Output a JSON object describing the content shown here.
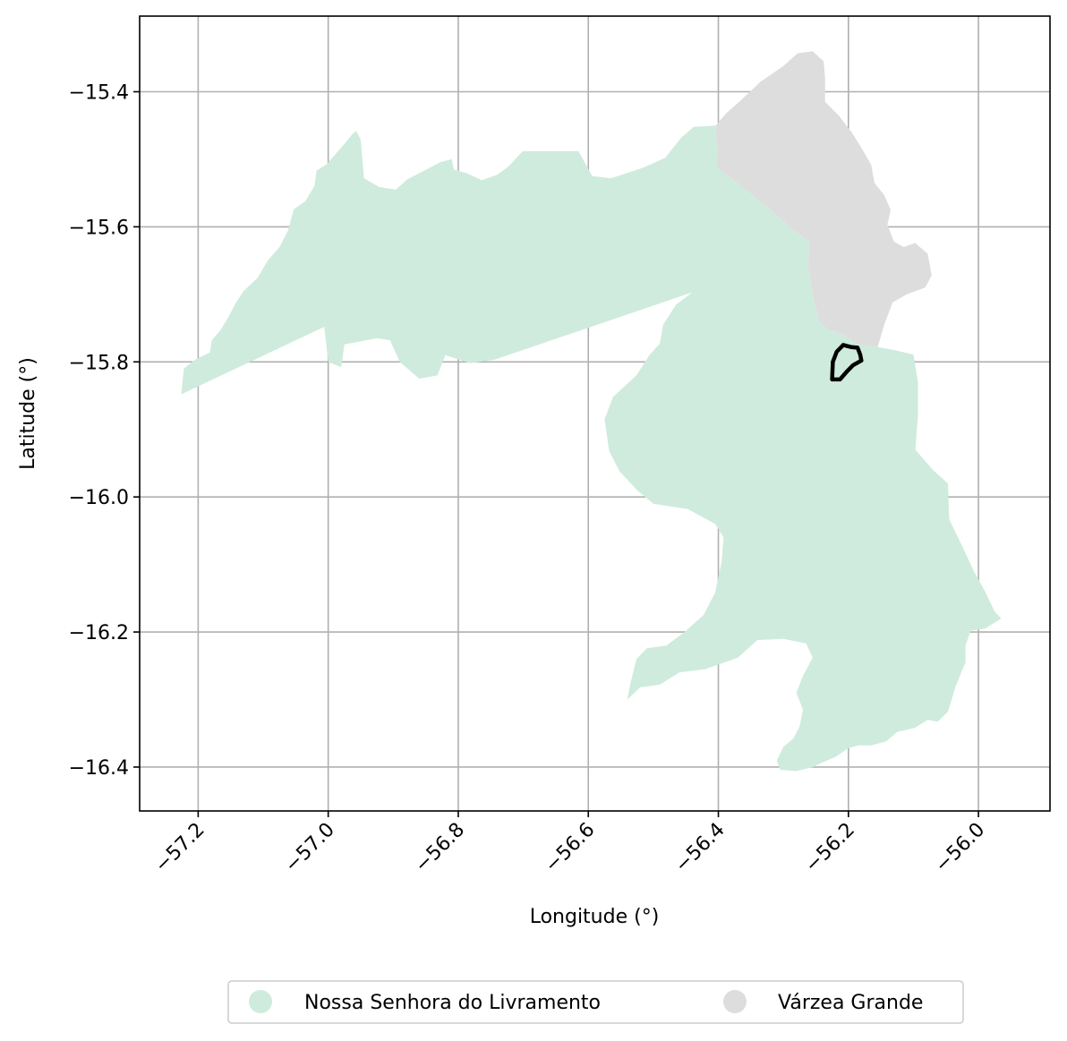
{
  "chart_data": {
    "type": "map",
    "xlabel": "Longitude (°)",
    "ylabel": "Latitude (°)",
    "xlim": [
      -57.29,
      -55.89
    ],
    "ylim": [
      -16.465,
      -15.288
    ],
    "xticks": [
      -57.2,
      -57.0,
      -56.8,
      -56.6,
      -56.4,
      -56.2,
      -56.0
    ],
    "yticks": [
      -15.4,
      -15.6,
      -15.8,
      -16.0,
      -16.2,
      -16.4
    ],
    "xtick_labels": [
      "−57.2",
      "−57.0",
      "−56.8",
      "−56.6",
      "−56.4",
      "−56.2",
      "−56.0"
    ],
    "ytick_labels": [
      "−15.4",
      "−15.6",
      "−15.8",
      "−16.0",
      "−16.2",
      "−16.4"
    ],
    "grid": true,
    "legend_position": "bottom-center",
    "regions": [
      {
        "name": "Nossa Senhora do Livramento",
        "color": "#cfebdd",
        "polygon": [
          [
            -57.226,
            -15.848
          ],
          [
            -57.222,
            -15.81
          ],
          [
            -57.205,
            -15.797
          ],
          [
            -57.182,
            -15.786
          ],
          [
            -57.179,
            -15.768
          ],
          [
            -57.165,
            -15.752
          ],
          [
            -57.153,
            -15.733
          ],
          [
            -57.143,
            -15.714
          ],
          [
            -57.13,
            -15.695
          ],
          [
            -57.109,
            -15.676
          ],
          [
            -57.093,
            -15.65
          ],
          [
            -57.075,
            -15.63
          ],
          [
            -57.062,
            -15.606
          ],
          [
            -57.053,
            -15.574
          ],
          [
            -57.035,
            -15.562
          ],
          [
            -57.021,
            -15.539
          ],
          [
            -57.018,
            -15.517
          ],
          [
            -57.002,
            -15.507
          ],
          [
            -56.983,
            -15.486
          ],
          [
            -56.974,
            -15.476
          ],
          [
            -56.963,
            -15.463
          ],
          [
            -56.957,
            -15.458
          ],
          [
            -56.95,
            -15.471
          ],
          [
            -56.945,
            -15.528
          ],
          [
            -56.922,
            -15.541
          ],
          [
            -56.896,
            -15.545
          ],
          [
            -56.879,
            -15.53
          ],
          [
            -56.827,
            -15.504
          ],
          [
            -56.81,
            -15.5
          ],
          [
            -56.807,
            -15.515
          ],
          [
            -56.786,
            -15.521
          ],
          [
            -56.764,
            -15.531
          ],
          [
            -56.74,
            -15.523
          ],
          [
            -56.722,
            -15.51
          ],
          [
            -56.701,
            -15.488
          ],
          [
            -56.615,
            -15.488
          ],
          [
            -56.594,
            -15.525
          ],
          [
            -56.565,
            -15.528
          ],
          [
            -56.517,
            -15.513
          ],
          [
            -56.482,
            -15.498
          ],
          [
            -56.457,
            -15.468
          ],
          [
            -56.438,
            -15.452
          ],
          [
            -56.404,
            -15.45
          ],
          [
            -56.4,
            -15.514
          ],
          [
            -56.372,
            -15.534
          ],
          [
            -56.322,
            -15.573
          ],
          [
            -56.286,
            -15.604
          ],
          [
            -56.26,
            -15.622
          ],
          [
            -56.262,
            -15.66
          ],
          [
            -56.255,
            -15.7
          ],
          [
            -56.245,
            -15.74
          ],
          [
            -56.232,
            -15.752
          ],
          [
            -56.21,
            -15.758
          ],
          [
            -56.185,
            -15.774
          ],
          [
            -56.155,
            -15.778
          ],
          [
            -56.132,
            -15.782
          ],
          [
            -56.1,
            -15.789
          ],
          [
            -56.093,
            -15.83
          ],
          [
            -56.093,
            -15.88
          ],
          [
            -56.097,
            -15.93
          ],
          [
            -56.07,
            -15.96
          ],
          [
            -56.047,
            -15.98
          ],
          [
            -56.045,
            -16.033
          ],
          [
            -56.024,
            -16.075
          ],
          [
            -56.007,
            -16.11
          ],
          [
            -55.99,
            -16.14
          ],
          [
            -55.975,
            -16.17
          ],
          [
            -55.965,
            -16.18
          ],
          [
            -55.99,
            -16.195
          ],
          [
            -56.012,
            -16.198
          ],
          [
            -56.02,
            -16.22
          ],
          [
            -56.02,
            -16.245
          ],
          [
            -56.035,
            -16.28
          ],
          [
            -56.047,
            -16.318
          ],
          [
            -56.063,
            -16.333
          ],
          [
            -56.078,
            -16.33
          ],
          [
            -56.098,
            -16.342
          ],
          [
            -56.125,
            -16.348
          ],
          [
            -56.142,
            -16.362
          ],
          [
            -56.165,
            -16.368
          ],
          [
            -56.185,
            -16.368
          ],
          [
            -56.2,
            -16.372
          ],
          [
            -56.22,
            -16.385
          ],
          [
            -56.237,
            -16.392
          ],
          [
            -56.255,
            -16.4
          ],
          [
            -56.28,
            -16.406
          ],
          [
            -56.305,
            -16.404
          ],
          [
            -56.31,
            -16.39
          ],
          [
            -56.3,
            -16.37
          ],
          [
            -56.285,
            -16.358
          ],
          [
            -56.275,
            -16.34
          ],
          [
            -56.27,
            -16.315
          ],
          [
            -56.28,
            -16.29
          ],
          [
            -56.27,
            -16.265
          ],
          [
            -56.255,
            -16.238
          ],
          [
            -56.265,
            -16.217
          ],
          [
            -56.3,
            -16.21
          ],
          [
            -56.34,
            -16.212
          ],
          [
            -56.37,
            -16.238
          ],
          [
            -56.42,
            -16.255
          ],
          [
            -56.46,
            -16.26
          ],
          [
            -56.49,
            -16.278
          ],
          [
            -56.52,
            -16.282
          ],
          [
            -56.54,
            -16.3
          ],
          [
            -56.535,
            -16.275
          ],
          [
            -56.526,
            -16.24
          ],
          [
            -56.51,
            -16.224
          ],
          [
            -56.48,
            -16.22
          ],
          [
            -56.452,
            -16.2
          ],
          [
            -56.423,
            -16.175
          ],
          [
            -56.405,
            -16.142
          ],
          [
            -56.395,
            -16.096
          ],
          [
            -56.392,
            -16.06
          ],
          [
            -56.405,
            -16.04
          ],
          [
            -56.447,
            -16.018
          ],
          [
            -56.5,
            -16.01
          ],
          [
            -56.525,
            -15.99
          ],
          [
            -56.552,
            -15.962
          ],
          [
            -56.568,
            -15.932
          ],
          [
            -56.575,
            -15.885
          ],
          [
            -56.562,
            -15.852
          ],
          [
            -56.526,
            -15.82
          ],
          [
            -56.506,
            -15.79
          ],
          [
            -56.49,
            -15.773
          ],
          [
            -56.485,
            -15.745
          ],
          [
            -56.465,
            -15.715
          ],
          [
            -56.44,
            -15.697
          ],
          [
            -56.745,
            -15.797
          ],
          [
            -56.782,
            -15.802
          ],
          [
            -56.82,
            -15.79
          ],
          [
            -56.832,
            -15.82
          ],
          [
            -56.86,
            -15.825
          ],
          [
            -56.89,
            -15.8
          ],
          [
            -56.905,
            -15.768
          ],
          [
            -56.925,
            -15.765
          ],
          [
            -56.975,
            -15.774
          ],
          [
            -56.98,
            -15.808
          ],
          [
            -57.0,
            -15.8
          ],
          [
            -57.006,
            -15.748
          ],
          [
            -57.226,
            -15.848
          ]
        ]
      },
      {
        "name": "Várzea Grande",
        "color": "#dddddd",
        "polygon": [
          [
            -56.404,
            -15.45
          ],
          [
            -56.388,
            -15.432
          ],
          [
            -56.368,
            -15.415
          ],
          [
            -56.335,
            -15.385
          ],
          [
            -56.3,
            -15.362
          ],
          [
            -56.278,
            -15.343
          ],
          [
            -56.255,
            -15.34
          ],
          [
            -56.238,
            -15.355
          ],
          [
            -56.236,
            -15.38
          ],
          [
            -56.236,
            -15.415
          ],
          [
            -56.215,
            -15.435
          ],
          [
            -56.195,
            -15.46
          ],
          [
            -56.18,
            -15.483
          ],
          [
            -56.165,
            -15.508
          ],
          [
            -56.16,
            -15.535
          ],
          [
            -56.145,
            -15.553
          ],
          [
            -56.135,
            -15.575
          ],
          [
            -56.14,
            -15.597
          ],
          [
            -56.13,
            -15.622
          ],
          [
            -56.115,
            -15.63
          ],
          [
            -56.097,
            -15.624
          ],
          [
            -56.078,
            -15.64
          ],
          [
            -56.072,
            -15.672
          ],
          [
            -56.082,
            -15.69
          ],
          [
            -56.11,
            -15.7
          ],
          [
            -56.132,
            -15.712
          ],
          [
            -56.145,
            -15.745
          ],
          [
            -56.155,
            -15.778
          ],
          [
            -56.185,
            -15.774
          ],
          [
            -56.21,
            -15.758
          ],
          [
            -56.232,
            -15.752
          ],
          [
            -56.245,
            -15.74
          ],
          [
            -56.255,
            -15.7
          ],
          [
            -56.262,
            -15.66
          ],
          [
            -56.26,
            -15.622
          ],
          [
            -56.286,
            -15.604
          ],
          [
            -56.322,
            -15.573
          ],
          [
            -56.372,
            -15.534
          ],
          [
            -56.4,
            -15.514
          ],
          [
            -56.404,
            -15.45
          ]
        ]
      }
    ],
    "outline": {
      "color": "#000000",
      "polygon": [
        [
          -56.225,
          -15.826
        ],
        [
          -56.224,
          -15.8
        ],
        [
          -56.218,
          -15.785
        ],
        [
          -56.208,
          -15.775
        ],
        [
          -56.196,
          -15.778
        ],
        [
          -56.186,
          -15.779
        ],
        [
          -56.182,
          -15.789
        ],
        [
          -56.18,
          -15.798
        ],
        [
          -56.193,
          -15.805
        ],
        [
          -56.203,
          -15.815
        ],
        [
          -56.213,
          -15.826
        ],
        [
          -56.225,
          -15.826
        ]
      ]
    }
  }
}
